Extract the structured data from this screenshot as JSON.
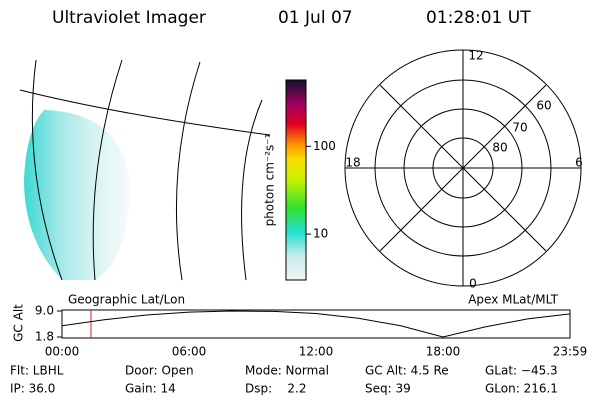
{
  "header": {
    "title": "Ultraviolet Imager",
    "date": "01 Jul 07",
    "time": "01:28:01 UT"
  },
  "colorbar": {
    "label": "photon cm⁻²s⁻¹",
    "log": true,
    "lim": [
      3,
      570
    ],
    "ticks": [
      10,
      100
    ]
  },
  "polar": {
    "mlt_labels": [
      "12",
      "18",
      "6",
      "0"
    ],
    "lat_labels": [
      "60",
      "70",
      "80"
    ]
  },
  "altitude": {
    "ylabel": "GC Alt",
    "left_title": "Geographic Lat/Lon",
    "right_title": "Apex MLat/MLT",
    "yticks": [
      {
        "value": 9.0,
        "label": "9.0"
      },
      {
        "value": 1.8,
        "label": "1.8"
      }
    ],
    "xticks": [
      "00:00",
      "06:00",
      "12:00",
      "18:00",
      "23:59"
    ],
    "curve": {
      "hours": [
        0,
        2,
        4,
        6,
        8,
        10,
        12,
        14,
        16,
        18,
        20,
        22,
        24
      ],
      "values": [
        4.9,
        6.6,
        7.9,
        8.7,
        9.0,
        8.9,
        8.3,
        7.0,
        4.9,
        1.8,
        4.6,
        6.8,
        8.2
      ]
    }
  },
  "footer": {
    "rows": [
      [
        "Flt: LBHL",
        "Door: Open",
        "Mode: Normal",
        "GC Alt: 4.5 Re",
        "GLat: −45.3"
      ],
      [
        "IP: 36.0",
        "Gain: 14",
        "Dsp:    2.2",
        "Seq: 39",
        "GLon: 216.1"
      ]
    ]
  }
}
